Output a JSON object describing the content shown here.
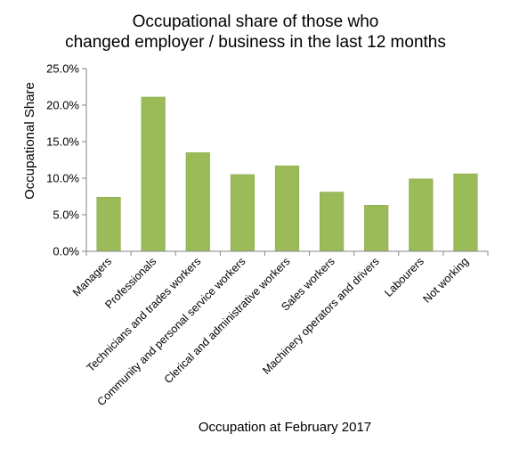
{
  "chart_data": {
    "type": "bar",
    "title_lines": [
      "Occupational share of those who",
      "changed employer / business in the last 12 months"
    ],
    "xlabel": "Occupation at February 2017",
    "ylabel": "Occupational Share",
    "categories": [
      "Managers",
      "Professionals",
      "Technicians and trades workers",
      "Community and personal service workers",
      "Clerical and administrative workers",
      "Sales workers",
      "Machinery operators and drivers",
      "Labourers",
      "Not working"
    ],
    "values": [
      7.4,
      21.1,
      13.5,
      10.5,
      11.7,
      8.1,
      6.3,
      9.9,
      10.6
    ],
    "ylim": [
      0,
      25
    ],
    "yticks": [
      "0.0%",
      "5.0%",
      "10.0%",
      "15.0%",
      "20.0%",
      "25.0%"
    ],
    "grid": false,
    "legend": "none",
    "bar_color": "#9bbb59",
    "bar_edge_color": "#8aa84c"
  }
}
